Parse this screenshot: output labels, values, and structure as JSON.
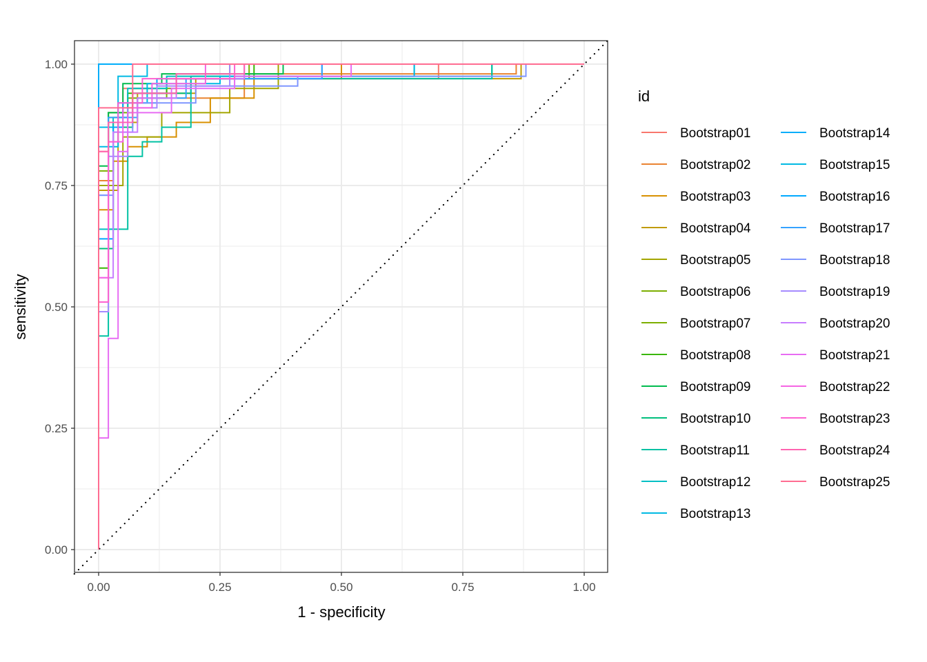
{
  "chart_data": {
    "type": "line",
    "title": "",
    "xlabel": "1 - specificity",
    "ylabel": "sensitivity",
    "xlim": [
      -0.05,
      1.05
    ],
    "ylim": [
      -0.05,
      1.05
    ],
    "x_ticks": [
      0,
      0.25,
      0.5,
      0.75,
      1
    ],
    "x_tick_labels": [
      "0.00",
      "0.25",
      "0.50",
      "0.75",
      "1.00"
    ],
    "y_ticks": [
      0,
      0.25,
      0.5,
      0.75,
      1
    ],
    "y_tick_labels": [
      "0.00",
      "0.25",
      "0.50",
      "0.75",
      "1.00"
    ],
    "grid": true,
    "reference_line": {
      "type": "diagonal",
      "style": "dotted",
      "from": [
        0,
        0
      ],
      "to": [
        1,
        1
      ]
    },
    "legend": {
      "title": "id",
      "position": "right",
      "columns": 2
    },
    "series": [
      {
        "name": "Bootstrap01",
        "color": "#F8766D",
        "points": [
          [
            0,
            0
          ],
          [
            0,
            0.82
          ],
          [
            0.02,
            0.82
          ],
          [
            0.02,
            0.9
          ],
          [
            0.05,
            0.9
          ],
          [
            0.05,
            0.95
          ],
          [
            0.12,
            0.95
          ],
          [
            0.12,
            0.97
          ],
          [
            0.7,
            0.97
          ],
          [
            0.7,
            1
          ],
          [
            1,
            1
          ]
        ]
      },
      {
        "name": "Bootstrap02",
        "color": "#EA8331",
        "points": [
          [
            0,
            0
          ],
          [
            0,
            0.76
          ],
          [
            0.03,
            0.76
          ],
          [
            0.03,
            0.88
          ],
          [
            0.08,
            0.88
          ],
          [
            0.08,
            0.93
          ],
          [
            0.3,
            0.93
          ],
          [
            0.3,
            0.98
          ],
          [
            0.86,
            0.98
          ],
          [
            0.86,
            1
          ],
          [
            1,
            1
          ]
        ]
      },
      {
        "name": "Bootstrap03",
        "color": "#D89000",
        "points": [
          [
            0,
            0
          ],
          [
            0,
            0.7
          ],
          [
            0.03,
            0.7
          ],
          [
            0.03,
            0.8
          ],
          [
            0.06,
            0.8
          ],
          [
            0.06,
            0.83
          ],
          [
            0.1,
            0.83
          ],
          [
            0.1,
            0.85
          ],
          [
            0.16,
            0.85
          ],
          [
            0.16,
            0.88
          ],
          [
            0.23,
            0.88
          ],
          [
            0.23,
            0.93
          ],
          [
            0.32,
            0.93
          ],
          [
            0.32,
            0.97
          ],
          [
            0.5,
            0.97
          ],
          [
            0.5,
            1
          ],
          [
            1,
            1
          ]
        ]
      },
      {
        "name": "Bootstrap04",
        "color": "#C09B00",
        "points": [
          [
            0,
            0
          ],
          [
            0,
            0.74
          ],
          [
            0.04,
            0.74
          ],
          [
            0.04,
            0.88
          ],
          [
            0.08,
            0.88
          ],
          [
            0.08,
            0.94
          ],
          [
            0.2,
            0.94
          ],
          [
            0.2,
            0.97
          ],
          [
            0.3,
            0.97
          ],
          [
            0.3,
            0.97
          ],
          [
            0.87,
            0.97
          ],
          [
            0.87,
            1
          ],
          [
            1,
            1
          ]
        ]
      },
      {
        "name": "Bootstrap05",
        "color": "#A3A500",
        "points": [
          [
            0,
            0
          ],
          [
            0,
            0.75
          ],
          [
            0.05,
            0.75
          ],
          [
            0.05,
            0.85
          ],
          [
            0.13,
            0.85
          ],
          [
            0.13,
            0.9
          ],
          [
            0.27,
            0.9
          ],
          [
            0.27,
            0.95
          ],
          [
            0.37,
            0.95
          ],
          [
            0.37,
            1
          ],
          [
            1,
            1
          ]
        ]
      },
      {
        "name": "Bootstrap06",
        "color": "#7CAE00",
        "points": [
          [
            0,
            0
          ],
          [
            0,
            0.78
          ],
          [
            0.03,
            0.78
          ],
          [
            0.03,
            0.88
          ],
          [
            0.06,
            0.88
          ],
          [
            0.06,
            0.93
          ],
          [
            0.14,
            0.93
          ],
          [
            0.14,
            0.97
          ],
          [
            0.31,
            0.97
          ],
          [
            0.31,
            1
          ],
          [
            1,
            1
          ]
        ]
      },
      {
        "name": "Bootstrap07",
        "color": "#7CAE00",
        "points": [
          [
            0,
            0
          ],
          [
            0,
            0.62
          ],
          [
            0.02,
            0.62
          ],
          [
            0.02,
            0.9
          ],
          [
            0.07,
            0.9
          ],
          [
            0.07,
            0.95
          ],
          [
            0.16,
            0.95
          ],
          [
            0.16,
            0.98
          ],
          [
            0.27,
            0.98
          ],
          [
            0.27,
            1
          ],
          [
            1,
            1
          ]
        ]
      },
      {
        "name": "Bootstrap08",
        "color": "#39B600",
        "points": [
          [
            0,
            0
          ],
          [
            0,
            0.58
          ],
          [
            0.02,
            0.58
          ],
          [
            0.02,
            0.89
          ],
          [
            0.06,
            0.89
          ],
          [
            0.06,
            0.94
          ],
          [
            0.14,
            0.94
          ],
          [
            0.14,
            0.97
          ],
          [
            0.32,
            0.97
          ],
          [
            0.32,
            1
          ],
          [
            1,
            1
          ]
        ]
      },
      {
        "name": "Bootstrap09",
        "color": "#00BB4E",
        "points": [
          [
            0,
            0
          ],
          [
            0,
            0.79
          ],
          [
            0.02,
            0.79
          ],
          [
            0.02,
            0.9
          ],
          [
            0.05,
            0.9
          ],
          [
            0.05,
            0.96
          ],
          [
            0.13,
            0.96
          ],
          [
            0.13,
            0.98
          ],
          [
            0.38,
            0.98
          ],
          [
            0.38,
            1
          ],
          [
            1,
            1
          ]
        ]
      },
      {
        "name": "Bootstrap10",
        "color": "#00BF7D",
        "points": [
          [
            0,
            0
          ],
          [
            0,
            0.62
          ],
          [
            0.03,
            0.62
          ],
          [
            0.03,
            0.87
          ],
          [
            0.07,
            0.87
          ],
          [
            0.07,
            0.94
          ],
          [
            0.19,
            0.94
          ],
          [
            0.19,
            0.975
          ],
          [
            0.81,
            0.975
          ],
          [
            0.81,
            1
          ],
          [
            1,
            1
          ]
        ]
      },
      {
        "name": "Bootstrap11",
        "color": "#00C1A3",
        "points": [
          [
            0,
            0
          ],
          [
            0,
            0.44
          ],
          [
            0.02,
            0.44
          ],
          [
            0.02,
            0.66
          ],
          [
            0.06,
            0.66
          ],
          [
            0.06,
            0.81
          ],
          [
            0.09,
            0.81
          ],
          [
            0.09,
            0.84
          ],
          [
            0.13,
            0.84
          ],
          [
            0.13,
            0.87
          ],
          [
            0.19,
            0.87
          ],
          [
            0.19,
            0.97
          ],
          [
            0.31,
            0.97
          ],
          [
            0.31,
            0.97
          ],
          [
            0.81,
            0.97
          ],
          [
            0.81,
            1
          ],
          [
            1,
            1
          ]
        ]
      },
      {
        "name": "Bootstrap12",
        "color": "#00BFC4",
        "points": [
          [
            0,
            0
          ],
          [
            0,
            0.66
          ],
          [
            0.03,
            0.66
          ],
          [
            0.03,
            0.89
          ],
          [
            0.06,
            0.89
          ],
          [
            0.06,
            0.95
          ],
          [
            0.14,
            0.95
          ],
          [
            0.14,
            0.975
          ],
          [
            0.65,
            0.975
          ],
          [
            0.65,
            1
          ],
          [
            1,
            1
          ]
        ]
      },
      {
        "name": "Bootstrap13",
        "color": "#00B9E3",
        "points": [
          [
            0,
            0
          ],
          [
            0,
            0.87
          ],
          [
            0.04,
            0.87
          ],
          [
            0.04,
            0.975
          ],
          [
            0.1,
            0.975
          ],
          [
            0.1,
            1
          ],
          [
            1,
            1
          ]
        ]
      },
      {
        "name": "Bootstrap14",
        "color": "#00ADFA",
        "points": [
          [
            0,
            0
          ],
          [
            0,
            1
          ],
          [
            0.1,
            1
          ],
          [
            1,
            1
          ]
        ]
      },
      {
        "name": "Bootstrap15",
        "color": "#00B9E3",
        "points": [
          [
            0,
            0
          ],
          [
            0,
            0.83
          ],
          [
            0.04,
            0.83
          ],
          [
            0.04,
            0.92
          ],
          [
            0.1,
            0.92
          ],
          [
            0.1,
            0.96
          ],
          [
            0.25,
            0.96
          ],
          [
            0.25,
            0.975
          ],
          [
            0.65,
            0.975
          ],
          [
            0.65,
            1
          ],
          [
            1,
            1
          ]
        ]
      },
      {
        "name": "Bootstrap16",
        "color": "#00A9FF",
        "points": [
          [
            0,
            0
          ],
          [
            0,
            0.64
          ],
          [
            0.03,
            0.64
          ],
          [
            0.03,
            0.87
          ],
          [
            0.05,
            0.87
          ],
          [
            0.05,
            0.92
          ],
          [
            0.12,
            0.92
          ],
          [
            0.12,
            0.97
          ],
          [
            0.46,
            0.97
          ],
          [
            0.46,
            1
          ],
          [
            1,
            1
          ]
        ]
      },
      {
        "name": "Bootstrap17",
        "color": "#35A2FF",
        "points": [
          [
            0,
            0
          ],
          [
            0,
            0.73
          ],
          [
            0.02,
            0.73
          ],
          [
            0.02,
            0.89
          ],
          [
            0.08,
            0.89
          ],
          [
            0.08,
            0.93
          ],
          [
            0.18,
            0.93
          ],
          [
            0.18,
            0.97
          ],
          [
            0.46,
            0.97
          ],
          [
            0.46,
            1
          ],
          [
            1,
            1
          ]
        ]
      },
      {
        "name": "Bootstrap18",
        "color": "#7F96FF",
        "points": [
          [
            0,
            0
          ],
          [
            0,
            0.73
          ],
          [
            0.03,
            0.73
          ],
          [
            0.03,
            0.86
          ],
          [
            0.07,
            0.86
          ],
          [
            0.07,
            0.92
          ],
          [
            0.2,
            0.92
          ],
          [
            0.2,
            0.955
          ],
          [
            0.41,
            0.955
          ],
          [
            0.41,
            0.975
          ],
          [
            0.88,
            0.975
          ],
          [
            0.88,
            1
          ],
          [
            1,
            1
          ]
        ]
      },
      {
        "name": "Bootstrap19",
        "color": "#A58AFF",
        "points": [
          [
            0,
            0
          ],
          [
            0,
            0.49
          ],
          [
            0.02,
            0.49
          ],
          [
            0.02,
            0.81
          ],
          [
            0.06,
            0.81
          ],
          [
            0.06,
            0.91
          ],
          [
            0.12,
            0.91
          ],
          [
            0.12,
            0.955
          ],
          [
            0.27,
            0.955
          ],
          [
            0.27,
            1
          ],
          [
            1,
            1
          ]
        ]
      },
      {
        "name": "Bootstrap20",
        "color": "#C77CFF",
        "points": [
          [
            0,
            0
          ],
          [
            0,
            0.56
          ],
          [
            0.03,
            0.56
          ],
          [
            0.03,
            0.86
          ],
          [
            0.08,
            0.86
          ],
          [
            0.08,
            0.93
          ],
          [
            0.16,
            0.93
          ],
          [
            0.16,
            0.97
          ],
          [
            0.3,
            0.97
          ],
          [
            0.3,
            1
          ],
          [
            1,
            1
          ]
        ]
      },
      {
        "name": "Bootstrap21",
        "color": "#E76BF3",
        "points": [
          [
            0,
            0
          ],
          [
            0,
            0.23
          ],
          [
            0.02,
            0.23
          ],
          [
            0.02,
            0.435
          ],
          [
            0.04,
            0.435
          ],
          [
            0.04,
            0.82
          ],
          [
            0.06,
            0.82
          ],
          [
            0.06,
            0.9
          ],
          [
            0.15,
            0.9
          ],
          [
            0.15,
            0.95
          ],
          [
            0.28,
            0.95
          ],
          [
            0.28,
            0.975
          ],
          [
            0.52,
            0.975
          ],
          [
            0.52,
            1
          ],
          [
            1,
            1
          ]
        ]
      },
      {
        "name": "Bootstrap22",
        "color": "#F564E3",
        "points": [
          [
            0,
            0
          ],
          [
            0,
            0.56
          ],
          [
            0.02,
            0.56
          ],
          [
            0.02,
            0.84
          ],
          [
            0.05,
            0.84
          ],
          [
            0.05,
            0.91
          ],
          [
            0.11,
            0.91
          ],
          [
            0.11,
            0.96
          ],
          [
            0.22,
            0.96
          ],
          [
            0.22,
            1
          ],
          [
            1,
            1
          ]
        ]
      },
      {
        "name": "Bootstrap23",
        "color": "#FD61D1",
        "points": [
          [
            0,
            0
          ],
          [
            0,
            0.51
          ],
          [
            0.02,
            0.51
          ],
          [
            0.02,
            0.84
          ],
          [
            0.04,
            0.84
          ],
          [
            0.04,
            0.92
          ],
          [
            0.09,
            0.92
          ],
          [
            0.09,
            0.97
          ],
          [
            0.28,
            0.97
          ],
          [
            0.28,
            1
          ],
          [
            1,
            1
          ]
        ]
      },
      {
        "name": "Bootstrap24",
        "color": "#FF64B0",
        "points": [
          [
            0,
            0
          ],
          [
            0,
            0.82
          ],
          [
            0.02,
            0.82
          ],
          [
            0.02,
            0.88
          ],
          [
            0.07,
            0.88
          ],
          [
            0.07,
            0.94
          ],
          [
            0.16,
            0.94
          ],
          [
            0.16,
            0.98
          ],
          [
            0.3,
            0.98
          ],
          [
            0.3,
            1
          ],
          [
            1,
            1
          ]
        ]
      },
      {
        "name": "Bootstrap25",
        "color": "#FF6C91",
        "points": [
          [
            0,
            0
          ],
          [
            0,
            0.91
          ],
          [
            0.07,
            0.91
          ],
          [
            0.07,
            1
          ],
          [
            1,
            1
          ]
        ]
      }
    ]
  }
}
